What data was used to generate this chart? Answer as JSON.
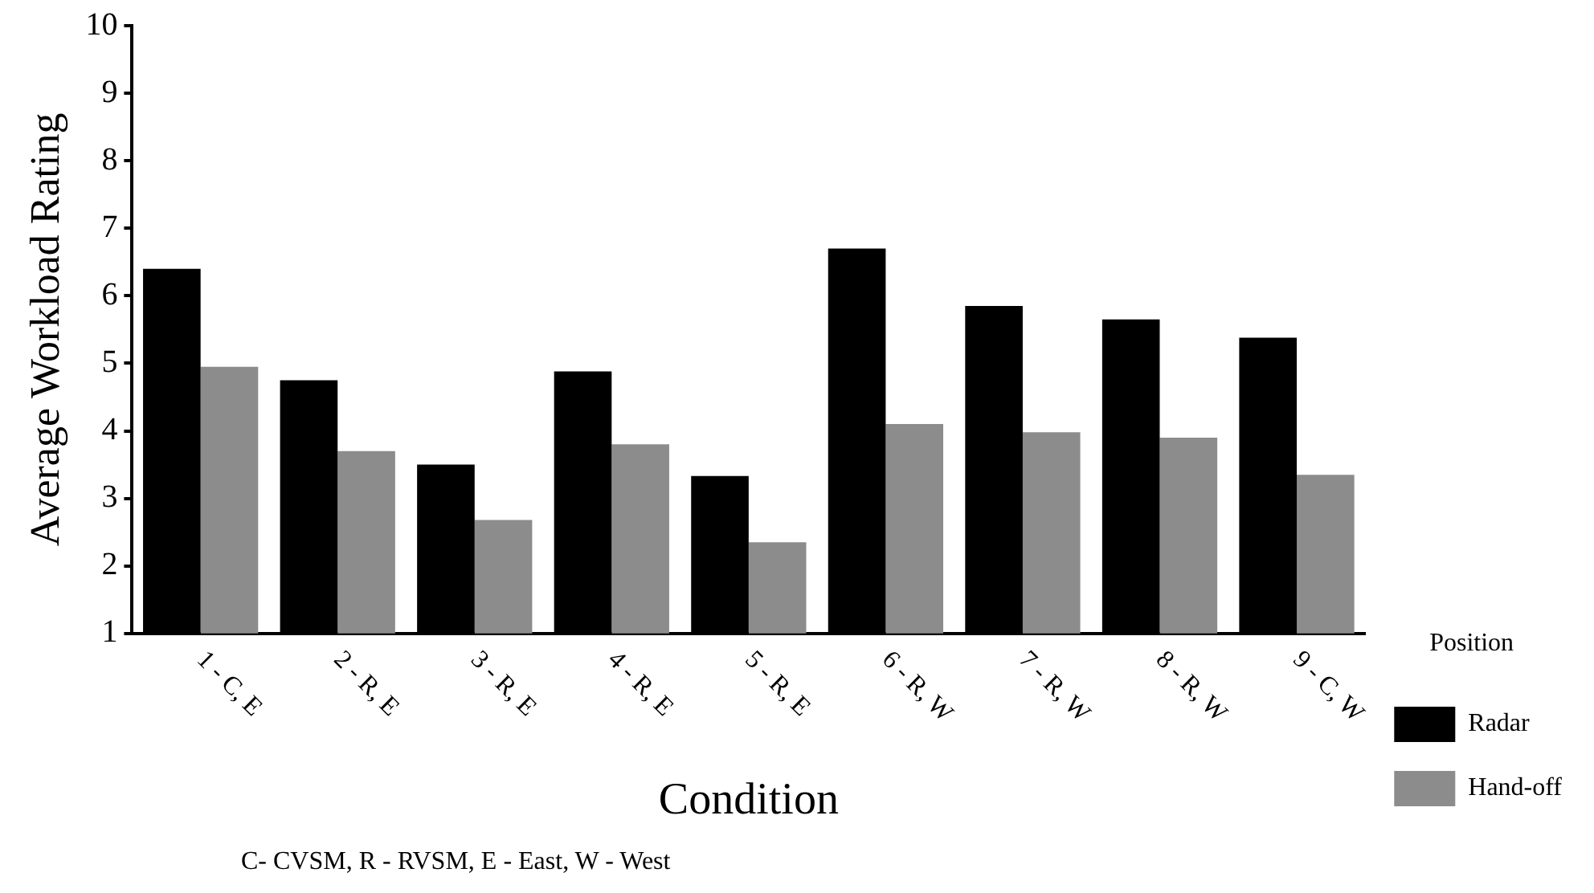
{
  "chart_data": {
    "type": "bar",
    "xlabel": "Condition",
    "ylabel": "Average Workload Rating",
    "legend_title": "Position",
    "categories": [
      "1 - C, E",
      "2 - R, E",
      "3 - R, E",
      "4 - R, E",
      "5 - R, E",
      "6 - R, W",
      "7 - R, W",
      "8 - R, W",
      "9 - C, W"
    ],
    "series": [
      {
        "name": "Radar",
        "color": "#000000",
        "values": [
          6.4,
          4.75,
          3.5,
          4.88,
          3.33,
          6.7,
          5.85,
          5.65,
          5.38
        ]
      },
      {
        "name": "Hand-off",
        "color": "#8c8c8c",
        "values": [
          4.95,
          3.7,
          2.68,
          3.8,
          2.35,
          4.1,
          3.98,
          3.9,
          3.35
        ]
      }
    ],
    "ylim": [
      1,
      10
    ],
    "yticks": [
      1,
      2,
      3,
      4,
      5,
      6,
      7,
      8,
      9,
      10
    ],
    "legend": "right",
    "annotations": [
      "C- CVSM, R - RVSM, E - East, W - West"
    ]
  }
}
